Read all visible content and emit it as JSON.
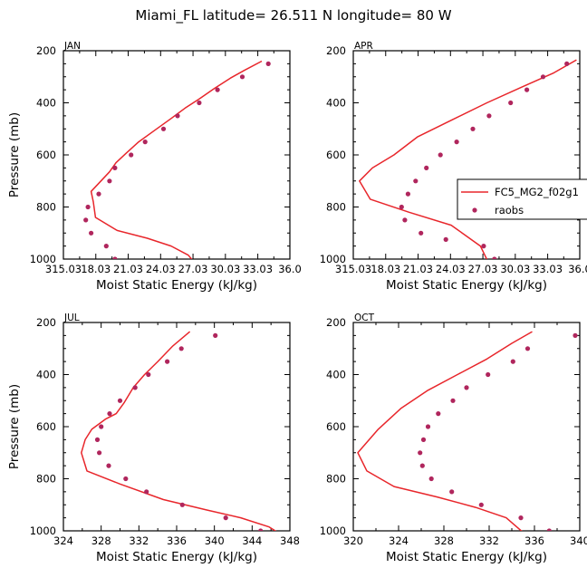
{
  "figure": {
    "title": "Miami_FL  latitude= 26.511 N longitude= 80 W"
  },
  "chart_data": [
    {
      "type": "line",
      "panel": "JAN",
      "title": "JAN",
      "xlabel": "Moist Static Energy (kJ/kg)",
      "ylabel": "Pressure (mb)",
      "xlim": [
        315.03,
        336.0
      ],
      "ylim": [
        1000,
        200
      ],
      "xticks": [
        315.03,
        318.03,
        321.03,
        324.03,
        327.03,
        330.03,
        333.03,
        336.0
      ],
      "xtick_labels": [
        "315.03",
        "18.03",
        "21.03",
        "24.03",
        "27.03",
        "30.03",
        "33.03",
        "36.0"
      ],
      "yticks": [
        200,
        400,
        600,
        800,
        1000
      ],
      "series": [
        {
          "name": "FC5_MG2_f02g1",
          "kind": "line",
          "color": "#e8262b",
          "x": [
            333.4,
            331.8,
            330.5,
            329.0,
            327.6,
            326.3,
            325.0,
            323.5,
            322.0,
            320.8,
            319.9,
            319.3,
            318.5,
            317.6,
            317.8,
            318.0,
            320.0,
            322.8,
            325.0,
            326.6,
            327.1
          ],
          "y": [
            240,
            275,
            305,
            345,
            385,
            420,
            460,
            505,
            550,
            595,
            630,
            665,
            700,
            740,
            780,
            840,
            890,
            920,
            950,
            985,
            1010
          ]
        },
        {
          "name": "raobs",
          "kind": "scatter",
          "color": "#b0265d",
          "x": [
            334.0,
            331.6,
            329.3,
            327.6,
            325.6,
            324.3,
            322.6,
            321.3,
            319.8,
            319.3,
            318.3,
            317.3,
            317.1,
            317.6,
            319.0,
            319.8
          ],
          "y": [
            250,
            300,
            350,
            400,
            450,
            500,
            550,
            600,
            650,
            700,
            750,
            800,
            850,
            900,
            950,
            1000
          ]
        }
      ]
    },
    {
      "type": "line",
      "panel": "APR",
      "title": "APR",
      "xlabel": "Moist Static Energy (kJ/kg)",
      "ylabel": "",
      "xlim": [
        315.03,
        336.0
      ],
      "ylim": [
        1000,
        200
      ],
      "xticks": [
        315.03,
        318.03,
        321.03,
        324.03,
        327.03,
        330.03,
        333.03,
        336.0
      ],
      "xtick_labels": [
        "315.03",
        "18.03",
        "21.03",
        "24.03",
        "27.03",
        "30.03",
        "33.03",
        "36.0"
      ],
      "yticks": [
        200,
        400,
        600,
        800,
        1000
      ],
      "series": [
        {
          "name": "FC5_MG2_f02g1",
          "kind": "line",
          "color": "#e8262b",
          "x": [
            335.7,
            333.6,
            330.6,
            327.4,
            324.2,
            321.0,
            318.8,
            316.8,
            315.6,
            316.6,
            320.2,
            324.1,
            326.8,
            327.5
          ],
          "y": [
            235,
            285,
            340,
            400,
            465,
            530,
            600,
            650,
            700,
            770,
            820,
            870,
            950,
            1010
          ]
        },
        {
          "name": "raobs",
          "kind": "scatter",
          "color": "#b0265d",
          "x": [
            334.8,
            332.6,
            331.1,
            329.6,
            327.6,
            326.1,
            324.6,
            323.1,
            321.8,
            320.8,
            320.1,
            319.5,
            319.8,
            321.3,
            323.6,
            327.1,
            328.1
          ],
          "y": [
            250,
            300,
            350,
            400,
            450,
            500,
            550,
            600,
            650,
            700,
            750,
            800,
            850,
            900,
            925,
            950,
            1000
          ]
        }
      ]
    },
    {
      "type": "line",
      "panel": "JUL",
      "title": "JUL",
      "xlabel": "Moist Static Energy (kJ/kg)",
      "ylabel": "Pressure (mb)",
      "xlim": [
        324,
        348
      ],
      "ylim": [
        1000,
        200
      ],
      "xticks": [
        324,
        328,
        332,
        336,
        340,
        344,
        348
      ],
      "xtick_labels": [
        "324",
        "328",
        "332",
        "336",
        "340",
        "344",
        "348"
      ],
      "yticks": [
        200,
        400,
        600,
        800,
        1000
      ],
      "series": [
        {
          "name": "FC5_MG2_f02g1",
          "kind": "line",
          "color": "#e8262b",
          "x": [
            337.4,
            335.6,
            334.0,
            332.6,
            331.4,
            330.4,
            329.6,
            328.5,
            327.0,
            326.3,
            325.9,
            326.5,
            330.0,
            334.6,
            339.2,
            342.8,
            345.8,
            346.9
          ],
          "y": [
            235,
            290,
            350,
            400,
            450,
            510,
            550,
            570,
            610,
            650,
            700,
            770,
            820,
            880,
            920,
            950,
            985,
            1010
          ]
        },
        {
          "name": "raobs",
          "kind": "scatter",
          "color": "#b0265d",
          "x": [
            340.1,
            336.5,
            335.0,
            333.0,
            331.6,
            330.0,
            328.9,
            328.0,
            327.6,
            327.8,
            328.8,
            330.6,
            332.8,
            336.6,
            341.2,
            344.9
          ],
          "y": [
            250,
            300,
            350,
            400,
            450,
            500,
            550,
            600,
            650,
            700,
            750,
            800,
            850,
            900,
            950,
            1000
          ]
        }
      ]
    },
    {
      "type": "line",
      "panel": "OCT",
      "title": "OCT",
      "xlabel": "Moist Static Energy (kJ/kg)",
      "ylabel": "",
      "xlim": [
        320,
        340
      ],
      "ylim": [
        1000,
        200
      ],
      "xticks": [
        320,
        324,
        328,
        332,
        336,
        340
      ],
      "xtick_labels": [
        "320",
        "324",
        "328",
        "332",
        "336",
        "340"
      ],
      "yticks": [
        200,
        400,
        600,
        800,
        1000
      ],
      "series": [
        {
          "name": "FC5_MG2_f02g1",
          "kind": "line",
          "color": "#e8262b",
          "x": [
            335.8,
            334.0,
            331.8,
            329.2,
            326.6,
            324.2,
            322.2,
            320.4,
            321.2,
            323.6,
            327.4,
            330.8,
            333.5,
            335.1
          ],
          "y": [
            235,
            280,
            340,
            400,
            460,
            530,
            610,
            700,
            770,
            830,
            870,
            910,
            950,
            1010
          ]
        },
        {
          "name": "raobs",
          "kind": "scatter",
          "color": "#b0265d",
          "x": [
            339.6,
            335.4,
            334.1,
            331.9,
            330.0,
            328.8,
            327.5,
            326.6,
            326.2,
            325.9,
            326.1,
            326.9,
            328.7,
            331.3,
            334.8,
            337.3
          ],
          "y": [
            250,
            300,
            350,
            400,
            450,
            500,
            550,
            600,
            650,
            700,
            750,
            800,
            850,
            900,
            950,
            1000
          ]
        }
      ]
    }
  ],
  "legend": {
    "placement": "right of APR panel",
    "entries": [
      {
        "label": "FC5_MG2_f02g1",
        "kind": "line",
        "color": "#e8262b"
      },
      {
        "label": "raobs",
        "kind": "marker",
        "color": "#b0265d"
      }
    ]
  }
}
